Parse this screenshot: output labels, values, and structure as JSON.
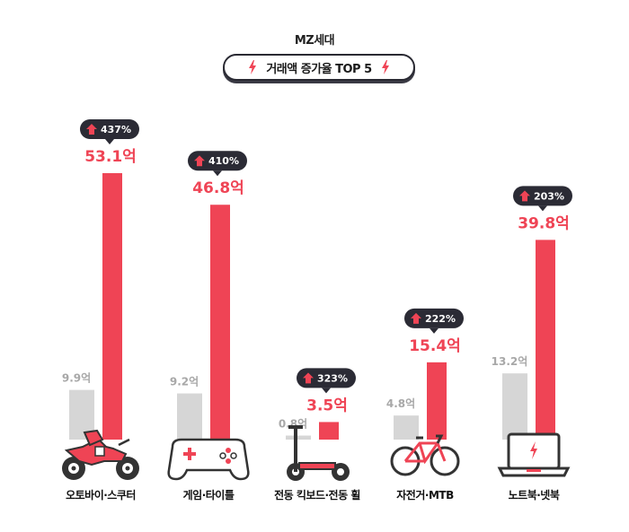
{
  "header": {
    "subtitle": "MZ세대",
    "title": "거래액 증가율 TOP 5"
  },
  "colors": {
    "current": "#ef4455",
    "previous": "#d6d6d6",
    "badge": "#2b2b35",
    "arrow": "#ef4455"
  },
  "chart_data": {
    "type": "bar",
    "title": "거래액 증가율 TOP 5",
    "subtitle": "MZ세대",
    "categories": [
      "오토바이·스쿠터",
      "게임·타이틀",
      "전동 킥보드·전동 휠",
      "자전거·MTB",
      "노트북·넷북"
    ],
    "icons": [
      "motorcycle-icon",
      "game-controller-icon",
      "kick-scooter-icon",
      "bicycle-icon",
      "laptop-icon"
    ],
    "series": [
      {
        "values": [
          9.9,
          9.2,
          0.8,
          4.8,
          13.2
        ],
        "labels": [
          "9.9억",
          "9.2억",
          "0.8억",
          "4.8억",
          "13.2억"
        ]
      },
      {
        "values": [
          53.1,
          46.8,
          3.5,
          15.4,
          39.8
        ],
        "labels": [
          "53.1억",
          "46.8억",
          "3.5억",
          "15.4억",
          "39.8억"
        ]
      }
    ],
    "growth": [
      "437%",
      "410%",
      "323%",
      "222%",
      "203%"
    ],
    "ylim": [
      0,
      53.1
    ]
  }
}
